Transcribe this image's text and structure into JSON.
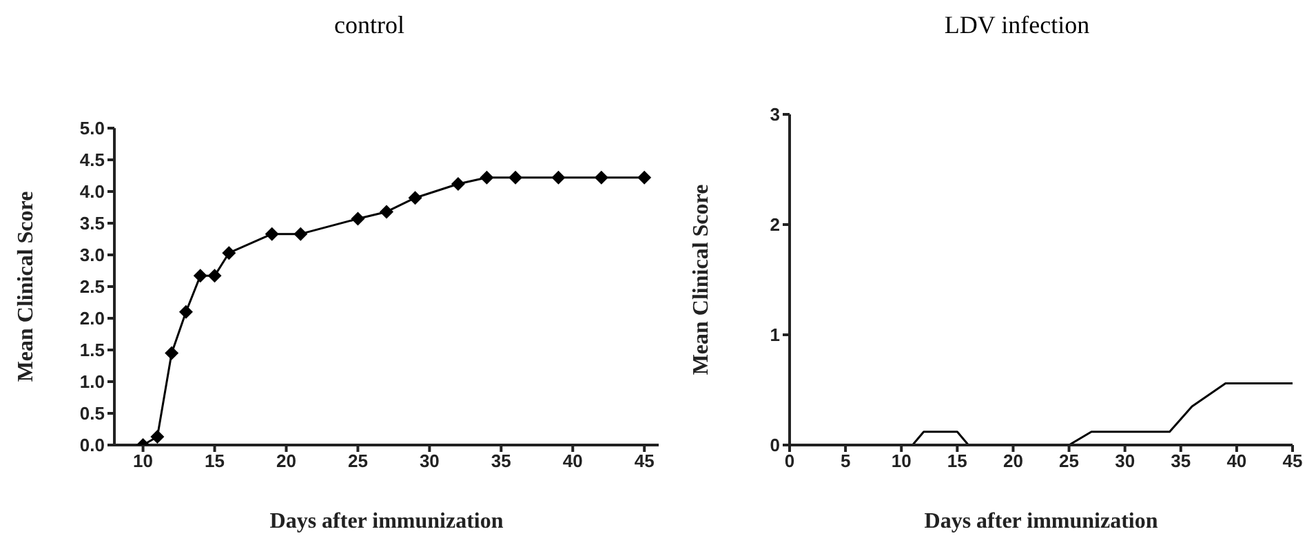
{
  "chart_data": [
    {
      "type": "line",
      "title": "control",
      "xlabel": "Days after immunization",
      "ylabel": "Mean Clinical Score",
      "xlim": [
        8,
        46
      ],
      "xticks": [
        10,
        15,
        20,
        25,
        30,
        35,
        40,
        45
      ],
      "ylim": [
        0,
        5
      ],
      "yticks": [
        {
          "value": 0,
          "label": "0.0"
        },
        {
          "value": 0.5,
          "label": "0.5"
        },
        {
          "value": 1,
          "label": "1.0"
        },
        {
          "value": 1.5,
          "label": "1.5"
        },
        {
          "value": 2,
          "label": "2.0"
        },
        {
          "value": 2.5,
          "label": "2.5"
        },
        {
          "value": 3,
          "label": "3.0"
        },
        {
          "value": 3.5,
          "label": "3.5"
        },
        {
          "value": 4,
          "label": "4.0"
        },
        {
          "value": 4.5,
          "label": "4.5"
        },
        {
          "value": 5,
          "label": "5.0"
        }
      ],
      "grid": false,
      "legend": false,
      "marker": "diamond",
      "x": [
        10,
        11,
        12,
        13,
        14,
        15,
        16,
        19,
        21,
        25,
        27,
        29,
        32,
        34,
        36,
        39,
        42,
        45
      ],
      "series": [
        {
          "color": "#000000",
          "values": [
            0,
            0.13,
            1.45,
            2.1,
            2.67,
            2.67,
            3.03,
            3.33,
            3.33,
            3.57,
            3.68,
            3.9,
            4.12,
            4.22,
            4.22,
            4.22,
            4.22,
            4.22
          ]
        }
      ]
    },
    {
      "type": "line",
      "title": "LDV infection",
      "xlabel": "Days after immunization",
      "ylabel": "Mean Clinical Score",
      "xlim": [
        0,
        45
      ],
      "xticks": [
        0,
        5,
        10,
        15,
        20,
        25,
        30,
        35,
        40,
        45
      ],
      "ylim": [
        0,
        3
      ],
      "yticks": [
        0,
        1,
        2,
        3
      ],
      "grid": false,
      "legend": false,
      "marker": "none",
      "x": [
        10,
        11,
        12,
        13,
        14,
        15,
        16,
        19,
        21,
        25,
        27,
        29,
        32,
        34,
        36,
        39,
        42,
        45
      ],
      "series": [
        {
          "color": "#000000",
          "values": [
            0,
            0,
            0.12,
            0.12,
            0.12,
            0.12,
            0,
            0,
            0,
            0,
            0.12,
            0.12,
            0.12,
            0.12,
            0.35,
            0.56,
            0.56,
            0.56
          ]
        }
      ]
    }
  ]
}
